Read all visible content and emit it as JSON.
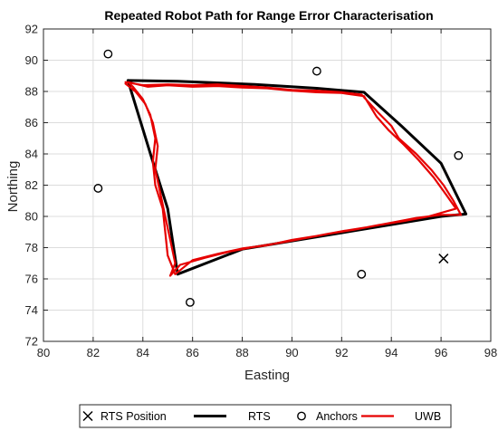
{
  "chart_data": {
    "type": "line",
    "title": "Repeated Robot Path for Range Error Characterisation",
    "xlabel": "Easting",
    "ylabel": "Northing",
    "xlim": [
      80,
      98
    ],
    "ylim": [
      72,
      92
    ],
    "xticks": [
      80,
      82,
      84,
      86,
      88,
      90,
      92,
      94,
      96,
      98
    ],
    "yticks": [
      72,
      74,
      76,
      78,
      80,
      82,
      84,
      86,
      88,
      90,
      92
    ],
    "grid": true,
    "legend_position": "bottom-outside",
    "legend": [
      "RTS Position",
      "RTS",
      "Anchors",
      "UWB"
    ],
    "series": [
      {
        "name": "RTS Position",
        "kind": "scatter",
        "marker": "x",
        "color": "#000000",
        "points": [
          [
            96.1,
            77.3
          ]
        ]
      },
      {
        "name": "RTS",
        "kind": "line",
        "color": "#000000",
        "points": [
          [
            83.4,
            88.7
          ],
          [
            85.4,
            88.65
          ],
          [
            88.5,
            88.45
          ],
          [
            91.0,
            88.2
          ],
          [
            92.9,
            87.95
          ],
          [
            94.4,
            85.8
          ],
          [
            96.0,
            83.4
          ],
          [
            97.0,
            80.15
          ],
          [
            96.0,
            80.0
          ],
          [
            88.0,
            77.9
          ],
          [
            85.4,
            76.3
          ],
          [
            85.0,
            80.5
          ],
          [
            84.4,
            83.5
          ],
          [
            83.4,
            88.7
          ]
        ]
      },
      {
        "name": "Anchors",
        "kind": "scatter",
        "marker": "o",
        "color": "#000000",
        "points": [
          [
            82.6,
            90.4
          ],
          [
            91.0,
            89.3
          ],
          [
            96.7,
            83.9
          ],
          [
            82.2,
            81.8
          ],
          [
            85.9,
            74.5
          ],
          [
            92.8,
            76.3
          ]
        ]
      },
      {
        "name": "UWB",
        "kind": "line",
        "color": "#e60000",
        "points": [
          [
            83.3,
            88.6
          ],
          [
            84.0,
            88.4
          ],
          [
            85.0,
            88.45
          ],
          [
            86.0,
            88.4
          ],
          [
            87.0,
            88.45
          ],
          [
            88.0,
            88.35
          ],
          [
            89.0,
            88.25
          ],
          [
            90.0,
            88.1
          ],
          [
            91.0,
            88.05
          ],
          [
            92.0,
            87.95
          ],
          [
            92.8,
            87.8
          ],
          [
            93.5,
            86.6
          ],
          [
            94.0,
            85.8
          ],
          [
            94.3,
            85.0
          ],
          [
            95.0,
            84.0
          ],
          [
            95.6,
            83.0
          ],
          [
            96.1,
            82.0
          ],
          [
            96.5,
            81.0
          ],
          [
            96.8,
            80.1
          ],
          [
            96.0,
            80.1
          ],
          [
            95.0,
            79.9
          ],
          [
            94.0,
            79.6
          ],
          [
            93.0,
            79.3
          ],
          [
            92.0,
            79.05
          ],
          [
            91.0,
            78.75
          ],
          [
            90.0,
            78.5
          ],
          [
            89.0,
            78.15
          ],
          [
            88.0,
            77.95
          ],
          [
            87.0,
            77.6
          ],
          [
            86.0,
            77.2
          ],
          [
            85.3,
            76.3
          ],
          [
            85.0,
            77.5
          ],
          [
            84.9,
            79.0
          ],
          [
            84.8,
            80.5
          ],
          [
            84.5,
            82.0
          ],
          [
            84.4,
            83.5
          ],
          [
            84.5,
            85.0
          ],
          [
            84.3,
            86.5
          ],
          [
            84.0,
            87.5
          ],
          [
            83.6,
            88.3
          ],
          [
            83.4,
            88.6
          ],
          [
            84.2,
            88.3
          ],
          [
            85.0,
            88.4
          ],
          [
            86.0,
            88.3
          ],
          [
            87.0,
            88.35
          ],
          [
            88.0,
            88.25
          ],
          [
            89.0,
            88.2
          ],
          [
            90.0,
            88.05
          ],
          [
            91.0,
            87.95
          ],
          [
            92.0,
            87.9
          ],
          [
            92.9,
            87.7
          ],
          [
            93.4,
            86.4
          ],
          [
            93.9,
            85.5
          ],
          [
            94.5,
            84.6
          ],
          [
            95.1,
            83.6
          ],
          [
            95.7,
            82.5
          ],
          [
            96.2,
            81.4
          ],
          [
            96.6,
            80.5
          ],
          [
            95.5,
            80.0
          ],
          [
            94.5,
            79.7
          ],
          [
            93.5,
            79.45
          ],
          [
            92.5,
            79.15
          ],
          [
            91.5,
            78.9
          ],
          [
            90.5,
            78.6
          ],
          [
            89.5,
            78.3
          ],
          [
            88.5,
            78.05
          ],
          [
            87.5,
            77.75
          ],
          [
            86.5,
            77.35
          ],
          [
            85.5,
            76.9
          ],
          [
            85.1,
            76.2
          ],
          [
            85.3,
            77.0
          ],
          [
            85.1,
            78.5
          ],
          [
            84.9,
            80.0
          ],
          [
            84.7,
            81.5
          ],
          [
            84.5,
            83.0
          ],
          [
            84.6,
            84.5
          ],
          [
            84.4,
            86.0
          ],
          [
            84.1,
            87.2
          ],
          [
            83.7,
            88.0
          ],
          [
            83.3,
            88.5
          ]
        ]
      }
    ]
  }
}
